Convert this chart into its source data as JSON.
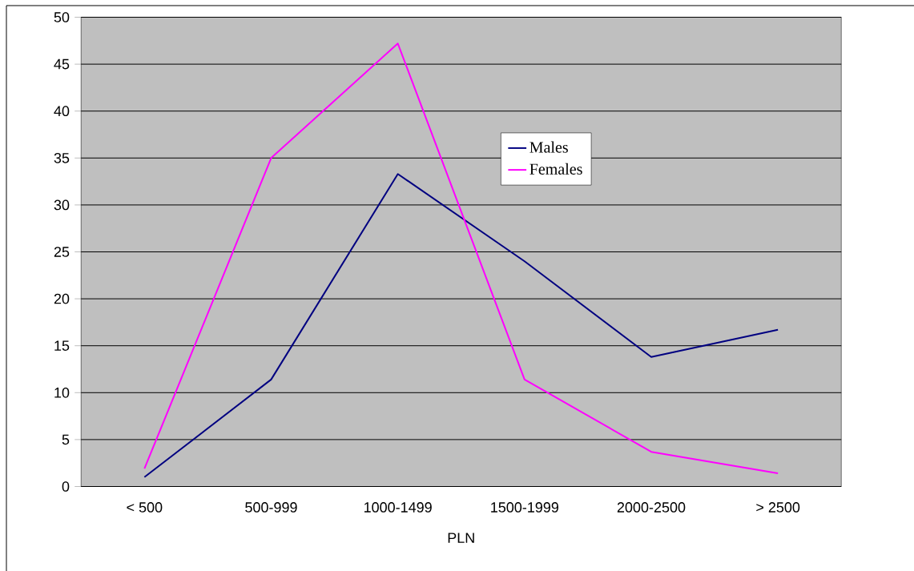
{
  "chart_data": {
    "type": "line",
    "xlabel": "PLN",
    "categories": [
      "< 500",
      "500-999",
      "1000-1499",
      "1500-1999",
      "2000-2500",
      "> 2500"
    ],
    "series": [
      {
        "name": "Males",
        "color": "#000080",
        "values": [
          1.0,
          11.4,
          33.3,
          24.0,
          13.8,
          16.7
        ]
      },
      {
        "name": "Females",
        "color": "#ff00ff",
        "values": [
          1.9,
          35.0,
          47.2,
          11.4,
          3.7,
          1.4
        ]
      }
    ],
    "ylim": [
      0,
      50
    ],
    "yticks": [
      0,
      5,
      10,
      15,
      20,
      25,
      30,
      35,
      40,
      45,
      50
    ],
    "grid": "y",
    "legend": "top",
    "marker": "none",
    "line_style": "solid"
  }
}
